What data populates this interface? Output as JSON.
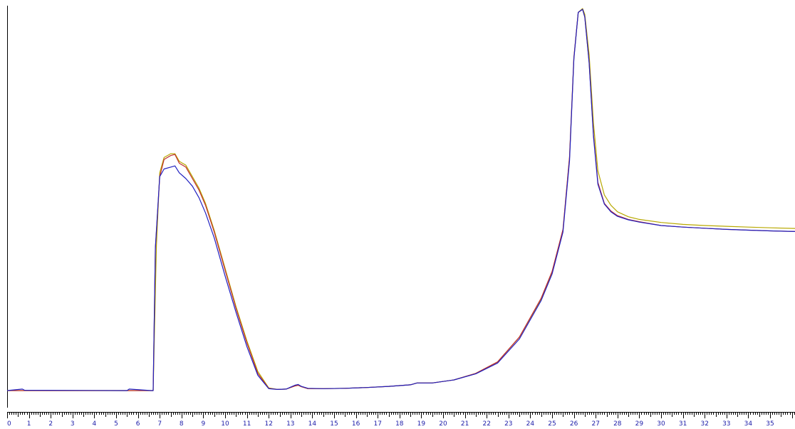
{
  "chart_data": {
    "type": "line",
    "title": "",
    "xlabel": "",
    "ylabel": "",
    "xlim": [
      0,
      36.4
    ],
    "ylim": [
      0,
      1000
    ],
    "grid": false,
    "legend": "none",
    "x_tick_labels": [
      "0",
      "1",
      "2",
      "3",
      "4",
      "5",
      "6",
      "7",
      "8",
      "9",
      "10",
      "11",
      "12",
      "13",
      "14",
      "15",
      "16",
      "17",
      "18",
      "19",
      "20",
      "21",
      "22",
      "23",
      "24",
      "25",
      "26",
      "27",
      "28",
      "29",
      "30",
      "31",
      "32",
      "33",
      "34",
      "35"
    ],
    "x_tick_values": [
      0,
      1,
      2,
      3,
      4,
      5,
      6,
      7,
      8,
      9,
      10,
      11,
      12,
      13,
      14,
      15,
      16,
      17,
      18,
      19,
      20,
      21,
      22,
      23,
      24,
      25,
      26,
      27,
      28,
      29,
      30,
      31,
      32,
      33,
      34,
      35
    ],
    "minor_ticks_per_unit": 10,
    "axis_color": "#000000",
    "tick_label_color": "#1a1aa8",
    "series": [
      {
        "color": "#b8a800",
        "x": [
          0,
          0.7,
          0.8,
          5.5,
          5.6,
          6.6,
          6.7,
          6.85,
          7.0,
          7.2,
          7.5,
          7.7,
          7.9,
          8.2,
          8.5,
          8.8,
          9.1,
          9.5,
          10.0,
          10.5,
          11.0,
          11.5,
          12.0,
          12.4,
          12.8,
          13.0,
          13.2,
          13.35,
          13.5,
          13.8,
          14.5,
          15.5,
          16.5,
          17.5,
          18.5,
          18.8,
          19.5,
          20.5,
          21.5,
          22.5,
          23.5,
          24.5,
          25.0,
          25.5,
          25.8,
          26.0,
          26.2,
          26.4,
          26.5,
          26.7,
          26.9,
          27.1,
          27.4,
          27.7,
          28.0,
          28.5,
          29.0,
          30.0,
          31.0,
          32.0,
          33.0,
          34.0,
          35.0,
          36.4
        ],
        "y": [
          0,
          0,
          0,
          0,
          0,
          0,
          0,
          380,
          570,
          610,
          620,
          620,
          600,
          590,
          560,
          530,
          490,
          420,
          320,
          220,
          130,
          50,
          7,
          3,
          4,
          8,
          12,
          14,
          10,
          5,
          5,
          6,
          8,
          11,
          15,
          20,
          20,
          28,
          45,
          75,
          140,
          240,
          310,
          420,
          610,
          870,
          990,
          1000,
          985,
          880,
          700,
          575,
          512,
          485,
          468,
          455,
          448,
          440,
          435,
          432,
          430,
          428,
          426,
          424
        ]
      },
      {
        "color": "#c03030",
        "x": [
          0,
          0.7,
          0.8,
          5.5,
          5.6,
          6.6,
          6.7,
          6.8,
          7.0,
          7.2,
          7.5,
          7.7,
          7.9,
          8.2,
          8.5,
          8.8,
          9.1,
          9.5,
          10.0,
          10.5,
          11.0,
          11.5,
          12.0,
          12.4,
          12.8,
          13.0,
          13.2,
          13.35,
          13.5,
          13.8,
          14.5,
          15.5,
          16.5,
          17.5,
          18.5,
          18.8,
          19.5,
          20.5,
          21.5,
          22.5,
          23.5,
          24.5,
          25.0,
          25.5,
          25.8,
          26.0,
          26.2,
          26.4,
          26.5,
          26.7,
          26.9,
          27.1,
          27.4,
          27.7,
          28.0,
          28.5,
          29.0,
          30.0,
          31.0,
          32.0,
          33.0,
          34.0,
          35.0,
          36.4
        ],
        "y": [
          0,
          0,
          0,
          0,
          0,
          0,
          0,
          370,
          560,
          605,
          615,
          618,
          595,
          585,
          555,
          525,
          485,
          415,
          315,
          215,
          125,
          45,
          6,
          3,
          4,
          8,
          12,
          14,
          10,
          5,
          5,
          6,
          8,
          11,
          15,
          20,
          20,
          28,
          45,
          75,
          140,
          242,
          312,
          422,
          612,
          872,
          990,
          998,
          978,
          860,
          670,
          545,
          490,
          470,
          458,
          448,
          442,
          432,
          428,
          425,
          422,
          420,
          418,
          416
        ]
      },
      {
        "color": "#2020c0",
        "x": [
          0,
          0.7,
          0.8,
          5.5,
          5.6,
          6.6,
          6.7,
          6.8,
          7.0,
          7.2,
          7.5,
          7.7,
          7.9,
          8.2,
          8.5,
          8.8,
          9.1,
          9.5,
          10.0,
          10.5,
          11.0,
          11.5,
          12.0,
          12.4,
          12.8,
          13.0,
          13.2,
          13.35,
          13.5,
          13.8,
          14.5,
          15.5,
          16.5,
          17.5,
          18.5,
          18.8,
          19.5,
          20.5,
          21.5,
          22.5,
          23.5,
          24.5,
          25.0,
          25.5,
          25.8,
          26.0,
          26.2,
          26.4,
          26.5,
          26.7,
          26.9,
          27.1,
          27.4,
          27.7,
          28.0,
          28.5,
          29.0,
          30.0,
          31.0,
          32.0,
          33.0,
          34.0,
          35.0,
          36.4
        ],
        "y": [
          0,
          4,
          1,
          0,
          4,
          0,
          0,
          375,
          560,
          580,
          585,
          588,
          570,
          555,
          535,
          505,
          465,
          400,
          300,
          205,
          115,
          40,
          5,
          3,
          4,
          9,
          14,
          16,
          11,
          6,
          5,
          6,
          8,
          11,
          15,
          20,
          20,
          28,
          44,
          72,
          135,
          236,
          305,
          415,
          602,
          868,
          990,
          998,
          978,
          858,
          665,
          540,
          488,
          468,
          456,
          447,
          441,
          432,
          428,
          425,
          422,
          420,
          418,
          416
        ]
      }
    ]
  }
}
